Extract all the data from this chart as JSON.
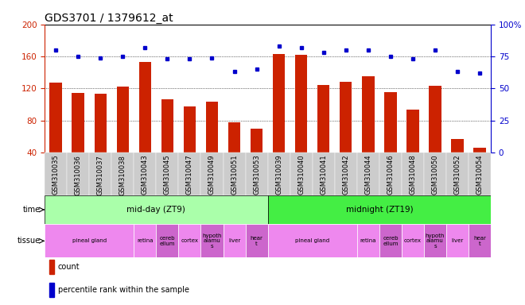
{
  "title": "GDS3701 / 1379612_at",
  "samples": [
    "GSM310035",
    "GSM310036",
    "GSM310037",
    "GSM310038",
    "GSM310043",
    "GSM310045",
    "GSM310047",
    "GSM310049",
    "GSM310051",
    "GSM310053",
    "GSM310039",
    "GSM310040",
    "GSM310041",
    "GSM310042",
    "GSM310044",
    "GSM310046",
    "GSM310048",
    "GSM310050",
    "GSM310052",
    "GSM310054"
  ],
  "bar_values": [
    127,
    114,
    113,
    122,
    153,
    106,
    98,
    103,
    78,
    70,
    163,
    162,
    124,
    128,
    135,
    115,
    94,
    123,
    57,
    46
  ],
  "dot_values": [
    80,
    75,
    74,
    75,
    82,
    73,
    73,
    74,
    63,
    65,
    83,
    82,
    78,
    80,
    80,
    75,
    73,
    80,
    63,
    62
  ],
  "ylim_left": [
    40,
    200
  ],
  "ylim_right": [
    0,
    100
  ],
  "yticks_left": [
    40,
    80,
    120,
    160,
    200
  ],
  "yticks_right": [
    0,
    25,
    50,
    75,
    100
  ],
  "bar_color": "#cc2200",
  "dot_color": "#0000cc",
  "bg_color": "#ffffff",
  "time_groups": [
    {
      "label": "mid-day (ZT9)",
      "start": 0,
      "end": 10,
      "color": "#aaffaa"
    },
    {
      "label": "midnight (ZT19)",
      "start": 10,
      "end": 20,
      "color": "#44ee44"
    }
  ],
  "tissue_groups": [
    {
      "label": "pineal gland",
      "start": 0,
      "end": 4,
      "color": "#ee88ee"
    },
    {
      "label": "retina",
      "start": 4,
      "end": 5,
      "color": "#ee88ee"
    },
    {
      "label": "cereb\nellum",
      "start": 5,
      "end": 6,
      "color": "#cc66cc"
    },
    {
      "label": "cortex",
      "start": 6,
      "end": 7,
      "color": "#ee88ee"
    },
    {
      "label": "hypoth\nalamu\ns",
      "start": 7,
      "end": 8,
      "color": "#cc66cc"
    },
    {
      "label": "liver",
      "start": 8,
      "end": 9,
      "color": "#ee88ee"
    },
    {
      "label": "hear\nt",
      "start": 9,
      "end": 10,
      "color": "#cc66cc"
    },
    {
      "label": "pineal gland",
      "start": 10,
      "end": 14,
      "color": "#ee88ee"
    },
    {
      "label": "retina",
      "start": 14,
      "end": 15,
      "color": "#ee88ee"
    },
    {
      "label": "cereb\nellum",
      "start": 15,
      "end": 16,
      "color": "#cc66cc"
    },
    {
      "label": "cortex",
      "start": 16,
      "end": 17,
      "color": "#ee88ee"
    },
    {
      "label": "hypoth\nalamu\ns",
      "start": 17,
      "end": 18,
      "color": "#cc66cc"
    },
    {
      "label": "liver",
      "start": 18,
      "end": 19,
      "color": "#ee88ee"
    },
    {
      "label": "hear\nt",
      "start": 19,
      "end": 20,
      "color": "#cc66cc"
    }
  ],
  "tick_bg_color": "#cccccc",
  "title_fontsize": 10,
  "tick_fontsize": 6,
  "label_fontsize": 7
}
